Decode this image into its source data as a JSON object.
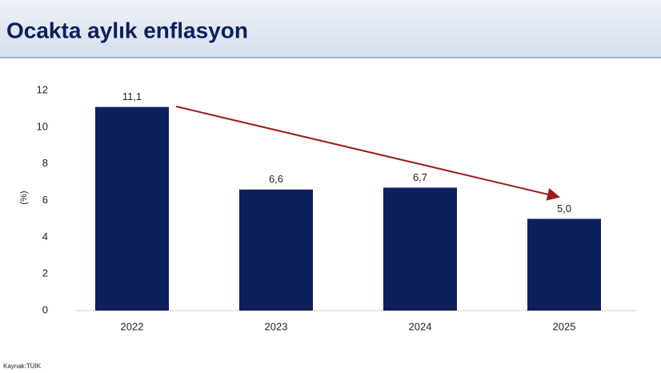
{
  "chart_data": {
    "type": "bar",
    "title": "Ocakta aylık enflasyon",
    "y_label": "(%)",
    "categories": [
      "2022",
      "2023",
      "2024",
      "2025"
    ],
    "values": [
      11.1,
      6.6,
      6.7,
      5.0
    ],
    "value_labels": [
      "11,1",
      "6,6",
      "6,7",
      "5,0"
    ],
    "color": "#0d1f5c",
    "ylim": [
      0,
      12
    ],
    "yticks": [
      0,
      2,
      4,
      6,
      8,
      10,
      12
    ],
    "grid": false,
    "source": "Kaynak:TÜİK"
  }
}
